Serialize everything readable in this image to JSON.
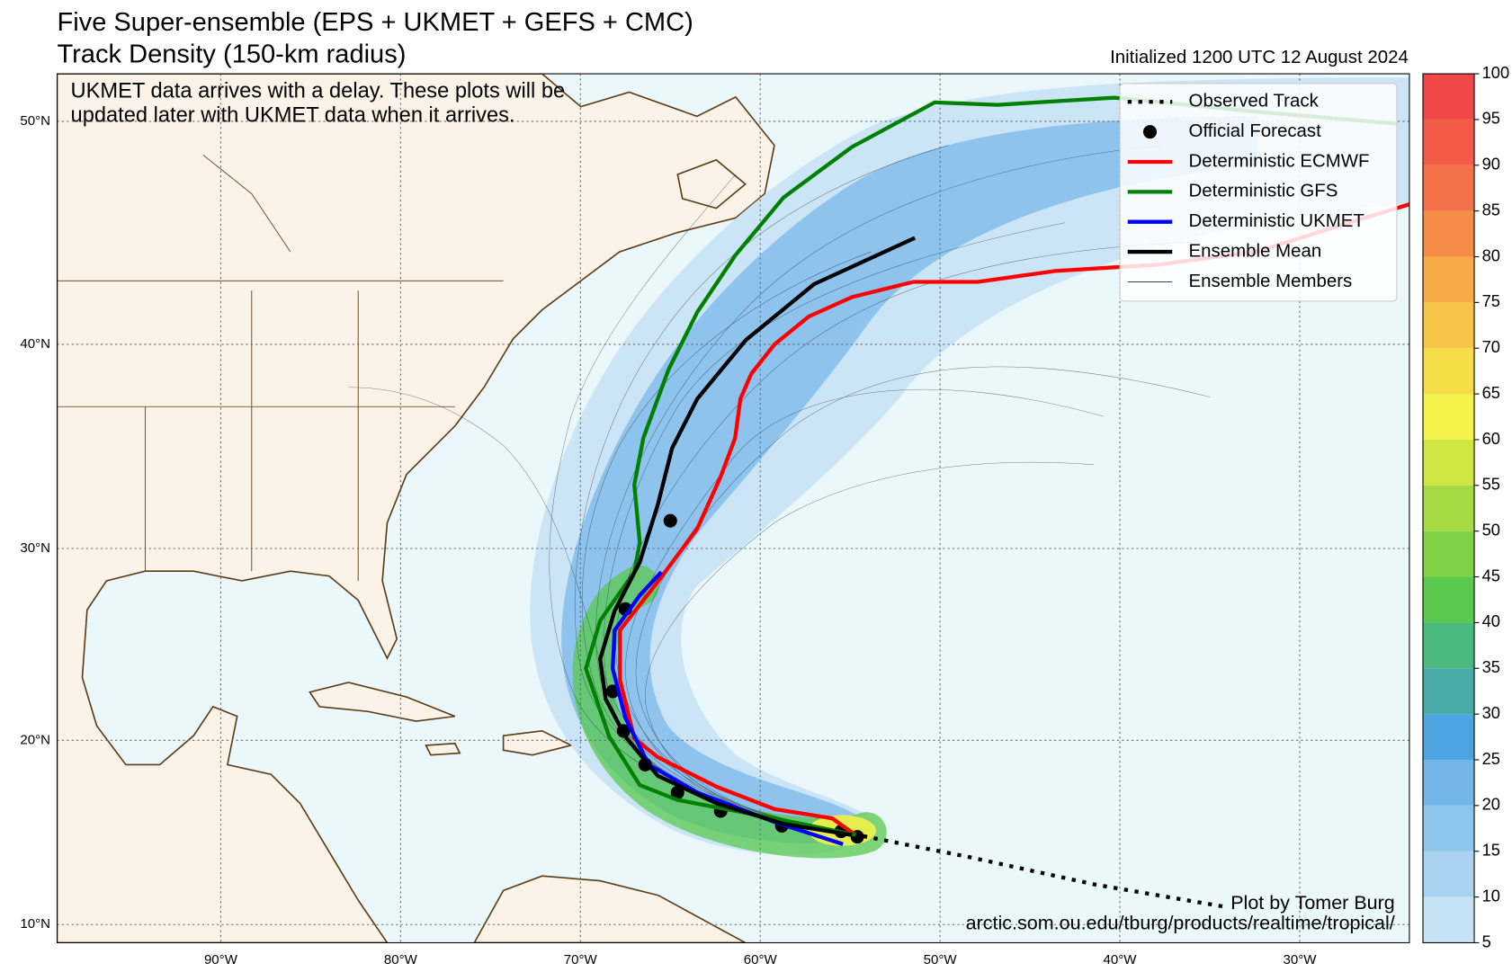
{
  "title": "Five Super-ensemble (EPS + UKMET + GEFS + CMC)",
  "subtitle": "Track Density (150-km radius)",
  "initialized": "Initialized 1200 UTC 12 August 2024",
  "note": [
    "UKMET data arrives with a delay. These plots will be",
    "updated later with UKMET data when it arrives."
  ],
  "credit": [
    "Plot by Tomer Burg",
    "arctic.som.ou.edu/tburg/products/realtime/tropical/"
  ],
  "map": {
    "projection": "miller",
    "lonlim": [
      -99.1,
      -23.9
    ],
    "latlim": [
      9,
      52
    ],
    "grid": true,
    "lonticks": [
      {
        "value": -90,
        "label": "90°W"
      },
      {
        "value": -80,
        "label": "80°W"
      },
      {
        "value": -70,
        "label": "70°W"
      },
      {
        "value": -60,
        "label": "60°W"
      },
      {
        "value": -50,
        "label": "50°W"
      },
      {
        "value": -40,
        "label": "40°W"
      },
      {
        "value": -30,
        "label": "30°W"
      }
    ],
    "latticks": [
      {
        "value": 10,
        "label": "10°N"
      },
      {
        "value": 20,
        "label": "20°N"
      },
      {
        "value": 30,
        "label": "30°N"
      },
      {
        "value": 40,
        "label": "40°N"
      },
      {
        "value": 50,
        "label": "50°N"
      }
    ],
    "legend": "upper right",
    "tracks": [
      {
        "name": "Observed Track",
        "style": "dotted",
        "color": "#000000",
        "lon": [
          -34.3,
          -41.4,
          -48.4,
          -54.6
        ],
        "lat": [
          11.0,
          12.2,
          13.7,
          14.9
        ]
      },
      {
        "name": "Official Forecast",
        "style": "marker",
        "color": "#000000",
        "lon": [
          -54.6,
          -55.5,
          -58.8,
          -62.2,
          -64.6,
          -66.4,
          -67.6,
          -68.2,
          -67.5,
          -65.0
        ],
        "lat": [
          14.8,
          15.1,
          15.4,
          16.2,
          17.2,
          18.7,
          20.5,
          22.6,
          26.9,
          31.4
        ]
      },
      {
        "name": "Deterministic ECMWF",
        "style": "line",
        "color": "#ff0000",
        "lon": [
          -54.7,
          -56.0,
          -59.2,
          -62.4,
          -65.7,
          -67.0,
          -67.8,
          -67.8,
          -65.7,
          -63.5,
          -62.2,
          -61.4,
          -61.1,
          -60.5,
          -59.2,
          -57.3,
          -54.9,
          -51.5,
          -47.9,
          -43.6,
          -37.7,
          -32.3,
          -28.0,
          -23.9
        ],
        "lat": [
          14.9,
          15.8,
          16.3,
          17.5,
          19.1,
          20.1,
          23.2,
          25.8,
          28.3,
          31.0,
          33.6,
          35.5,
          37.4,
          38.6,
          40.0,
          41.3,
          42.2,
          42.9,
          42.9,
          43.4,
          43.7,
          44.3,
          45.4,
          46.4
        ]
      },
      {
        "name": "Deterministic GFS",
        "style": "line",
        "color": "#008000",
        "lon": [
          -54.7,
          -59.2,
          -64.6,
          -66.7,
          -68.4,
          -69.7,
          -68.9,
          -67.0,
          -66.7,
          -67.0,
          -66.5,
          -65.1,
          -63.5,
          -61.4,
          -58.7,
          -54.9,
          -50.3,
          -46.8,
          -40.3,
          -32.3,
          -24.6
        ],
        "lat": [
          14.9,
          15.8,
          16.8,
          17.6,
          20.2,
          23.8,
          26.3,
          28.8,
          30.3,
          33.2,
          35.5,
          38.8,
          41.5,
          44.1,
          46.7,
          48.9,
          50.8,
          50.7,
          51.0,
          50.4,
          49.9
        ]
      },
      {
        "name": "Deterministic UKMET",
        "style": "line",
        "color": "#0000ff",
        "lon": [
          -55.4,
          -59.2,
          -63.5,
          -66.2,
          -67.5,
          -68.2,
          -68.1,
          -66.7,
          -65.5
        ],
        "lat": [
          14.4,
          15.6,
          17.2,
          18.7,
          21.2,
          23.8,
          25.8,
          27.6,
          28.8
        ]
      },
      {
        "name": "Ensemble Mean",
        "style": "line",
        "color": "#000000",
        "lon": [
          -54.9,
          -58.7,
          -62.4,
          -65.7,
          -67.5,
          -68.6,
          -68.9,
          -68.1,
          -66.7,
          -65.7,
          -64.9,
          -63.5,
          -60.8,
          -57.0,
          -51.4
        ],
        "lat": [
          14.9,
          15.5,
          16.6,
          18.1,
          20.2,
          22.2,
          24.3,
          26.8,
          29.3,
          32.2,
          35.0,
          37.4,
          40.2,
          42.8,
          44.9
        ]
      },
      {
        "name": "Ensemble Members",
        "style": "thin",
        "color": "#000000"
      }
    ]
  },
  "colorbar": {
    "ticks": [
      5,
      10,
      15,
      20,
      25,
      30,
      35,
      40,
      45,
      50,
      55,
      60,
      65,
      70,
      75,
      80,
      85,
      90,
      95,
      100
    ],
    "colors": [
      "#c6e2f5",
      "#aad3f1",
      "#8ec5ed",
      "#72b5e9",
      "#4ea3e1",
      "#4aaaa8",
      "#4bba7e",
      "#5ac94e",
      "#80d146",
      "#a5da44",
      "#cfe541",
      "#f4f14b",
      "#f6dc47",
      "#f6c447",
      "#f6aa48",
      "#f58d48",
      "#f57248",
      "#f35a48",
      "#f04848"
    ]
  }
}
